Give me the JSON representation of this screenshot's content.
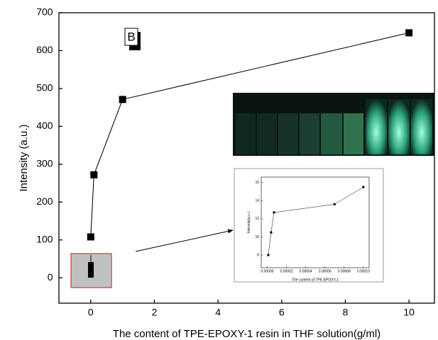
{
  "chart_data": [
    {
      "type": "line",
      "x_label": "The content of TPE-EPOXY-1 resin in THF solution(g/ml)",
      "y_label": "Intensity (a.u.)",
      "annotation": "B",
      "x": [
        0,
        0.1,
        1,
        10
      ],
      "values": [
        108,
        272,
        471,
        647
      ],
      "color": "#000000",
      "xlim": [
        -1,
        10.8
      ],
      "ylim": [
        -67,
        700
      ],
      "xticks": [
        0,
        2,
        4,
        6,
        8,
        10
      ],
      "yticks": [
        0,
        100,
        200,
        300,
        400,
        500,
        600,
        700
      ]
    },
    {
      "type": "line",
      "x_label": "The content of TPE-EPOXY-1",
      "y_label": "Intensity(a.u.)",
      "x": [
        1e-06,
        4e-06,
        7e-06,
        7e-05,
        0.0001
      ],
      "values": [
        8,
        10.5,
        12.7,
        13.6,
        15.5
      ],
      "color": "#000000",
      "xlim": [
        -6.3e-06,
        0.000106
      ],
      "ylim": [
        6.6,
        16.6
      ],
      "xticks": [
        {
          "value": 0,
          "label": "0.00000"
        },
        {
          "value": 2e-05,
          "label": "0.00002"
        },
        {
          "value": 4e-05,
          "label": "0.00004"
        },
        {
          "value": 6e-05,
          "label": "0.00006"
        },
        {
          "value": 8e-05,
          "label": "0.00008"
        },
        {
          "value": 0.0001,
          "label": "0.00010"
        }
      ],
      "yticks": [
        8,
        10,
        12,
        14,
        16
      ]
    }
  ]
}
